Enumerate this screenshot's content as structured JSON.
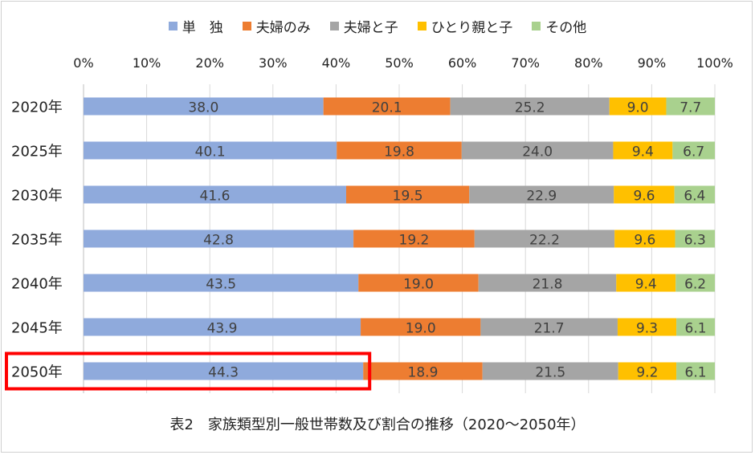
{
  "chart_data": {
    "type": "bar",
    "orientation": "horizontal",
    "stacked": "percent",
    "title": "表2　家族類型別一般世帯数及び割合の推移（2020～2050年）",
    "xlim": [
      0,
      100
    ],
    "x_ticks": [
      "0%",
      "10%",
      "20%",
      "30%",
      "40%",
      "50%",
      "60%",
      "70%",
      "80%",
      "90%",
      "100%"
    ],
    "x_axis_position": "top",
    "grid": true,
    "legend_position": "top",
    "categories": [
      "2020年",
      "2025年",
      "2030年",
      "2035年",
      "2040年",
      "2045年",
      "2050年"
    ],
    "series": [
      {
        "name": "単　独",
        "color": "#8faadc",
        "values": [
          38.0,
          40.1,
          41.6,
          42.8,
          43.5,
          43.9,
          44.3
        ],
        "labels": [
          "38.0",
          "40.1",
          "41.6",
          "42.8",
          "43.5",
          "43.9",
          "44.3"
        ]
      },
      {
        "name": "夫婦のみ",
        "color": "#ed7d31",
        "values": [
          20.1,
          19.8,
          19.5,
          19.2,
          19.0,
          19.0,
          18.9
        ],
        "labels": [
          "20.1",
          "19.8",
          "19.5",
          "19.2",
          "19.0",
          "19.0",
          "18.9"
        ]
      },
      {
        "name": "夫婦と子",
        "color": "#a5a5a5",
        "values": [
          25.2,
          24.0,
          22.9,
          22.2,
          21.8,
          21.7,
          21.5
        ],
        "labels": [
          "25.2",
          "24.0",
          "22.9",
          "22.2",
          "21.8",
          "21.7",
          "21.5"
        ]
      },
      {
        "name": "ひとり親と子",
        "color": "#ffc000",
        "values": [
          9.0,
          9.4,
          9.6,
          9.6,
          9.4,
          9.3,
          9.2
        ],
        "labels": [
          "9.0",
          "9.4",
          "9.6",
          "9.6",
          "9.4",
          "9.3",
          "9.2"
        ]
      },
      {
        "name": "その他",
        "color": "#a9d18e",
        "values": [
          7.7,
          6.7,
          6.4,
          6.3,
          6.2,
          6.1,
          6.1
        ],
        "labels": [
          "7.7",
          "6.7",
          "6.4",
          "6.3",
          "6.2",
          "6.1",
          "6.1"
        ]
      }
    ],
    "highlight": {
      "category": "2050年",
      "series": "単　独",
      "color": "#ff0000"
    }
  }
}
